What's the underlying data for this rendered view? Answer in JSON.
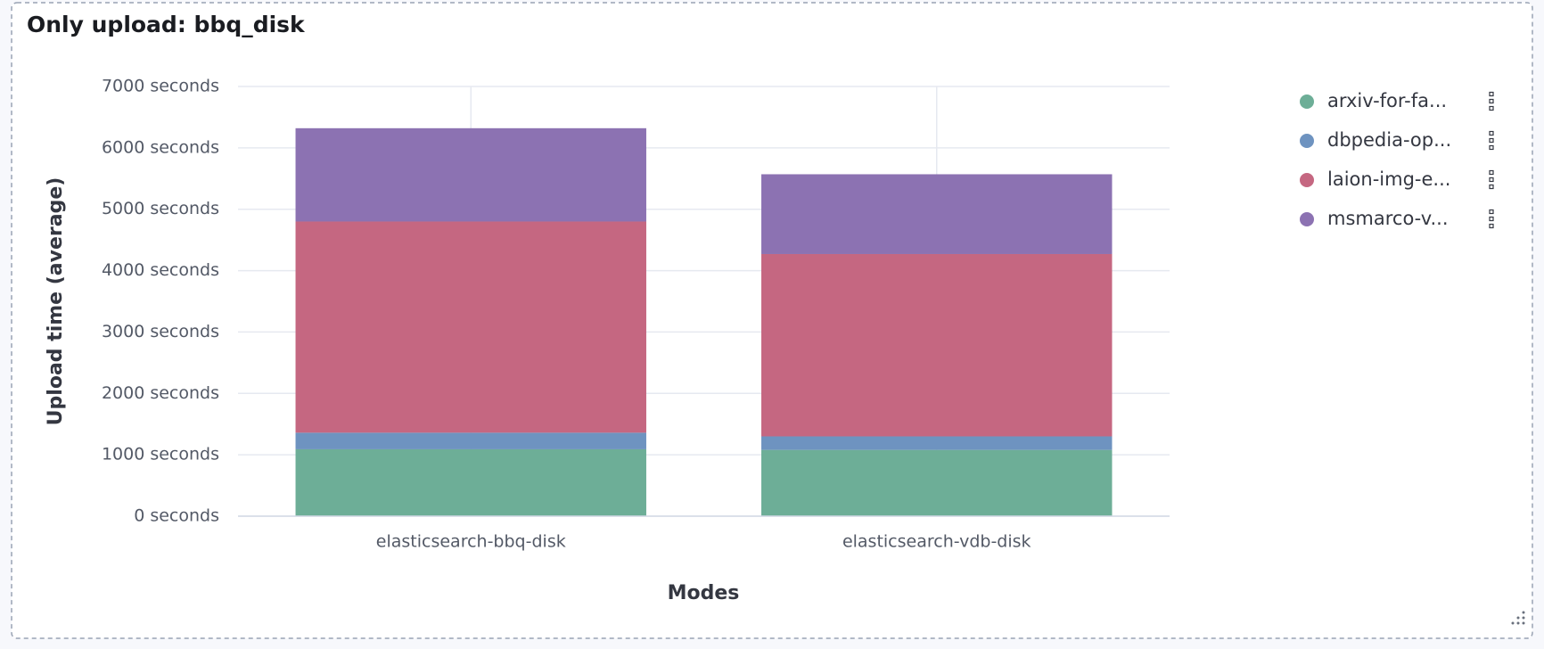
{
  "chart_data": {
    "type": "bar",
    "stacked": true,
    "title": "Only upload: bbq_disk",
    "x_label": "Modes",
    "y_label": "Upload time (average)",
    "categories": [
      "elasticsearch-bbq-disk",
      "elasticsearch-vdb-disk"
    ],
    "series": [
      {
        "name": "arxiv-for-fa...",
        "color": "#6dae97",
        "values": [
          1090,
          1080
        ]
      },
      {
        "name": "dbpedia-op...",
        "color": "#6e93c0",
        "values": [
          270,
          220
        ]
      },
      {
        "name": "laion-img-e...",
        "color": "#c56781",
        "values": [
          3440,
          2970
        ]
      },
      {
        "name": "msmarco-v...",
        "color": "#8c72b2",
        "values": [
          1520,
          1300
        ]
      }
    ],
    "ylim": [
      0,
      7000
    ],
    "yticks": [
      {
        "value": 0,
        "label": "0 seconds"
      },
      {
        "value": 1000,
        "label": "1000 seconds"
      },
      {
        "value": 2000,
        "label": "2000 seconds"
      },
      {
        "value": 3000,
        "label": "3000 seconds"
      },
      {
        "value": 4000,
        "label": "4000 seconds"
      },
      {
        "value": 5000,
        "label": "5000 seconds"
      },
      {
        "value": 6000,
        "label": "6000 seconds"
      },
      {
        "value": 7000,
        "label": "7000 seconds"
      }
    ],
    "grid": true,
    "legend": "right"
  }
}
